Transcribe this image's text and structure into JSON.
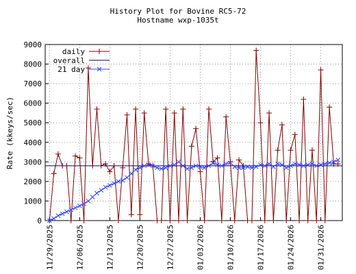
{
  "chart_data": {
    "type": "line",
    "title": "History Plot for Bovine RC5-72",
    "subtitle": "Hostname wxp-1035t",
    "y_label": "Rate (kkeys/sec)",
    "x": [
      "2025-11-29",
      "2025-11-30",
      "2025-12-01",
      "2025-12-02",
      "2025-12-03",
      "2025-12-04",
      "2025-12-05",
      "2025-12-06",
      "2025-12-07",
      "2025-12-08",
      "2025-12-09",
      "2025-12-10",
      "2025-12-11",
      "2025-12-12",
      "2025-12-13",
      "2025-12-14",
      "2025-12-15",
      "2025-12-16",
      "2025-12-17",
      "2025-12-18",
      "2025-12-19",
      "2025-12-20",
      "2025-12-21",
      "2025-12-22",
      "2025-12-23",
      "2025-12-24",
      "2025-12-25",
      "2025-12-26",
      "2025-12-27",
      "2025-12-28",
      "2025-12-29",
      "2025-12-30",
      "2025-12-31",
      "2026-01-01",
      "2026-01-02",
      "2026-01-03",
      "2026-01-04",
      "2026-01-05",
      "2026-01-06",
      "2026-01-07",
      "2026-01-08",
      "2026-01-09",
      "2026-01-10",
      "2026-01-11",
      "2026-01-12",
      "2026-01-13",
      "2026-01-14",
      "2026-01-15",
      "2026-01-16",
      "2026-01-17",
      "2026-01-18",
      "2026-01-19",
      "2026-01-20",
      "2026-01-21",
      "2026-01-22",
      "2026-01-23",
      "2026-01-24",
      "2026-01-25",
      "2026-01-26",
      "2026-01-27",
      "2026-01-28",
      "2026-01-29",
      "2026-01-30",
      "2026-01-31",
      "2026-02-01",
      "2026-02-02",
      "2026-02-03",
      "2026-02-04"
    ],
    "series": [
      {
        "name": "daily",
        "color": "#800000",
        "marker": "plus",
        "values": [
          0,
          2400,
          3400,
          2800,
          2800,
          0,
          3300,
          3200,
          0,
          7800,
          2800,
          5700,
          2800,
          2900,
          2500,
          2800,
          0,
          2700,
          5400,
          300,
          5700,
          300,
          5500,
          2900,
          2800,
          0,
          0,
          5700,
          0,
          5500,
          0,
          5700,
          0,
          3800,
          4700,
          2500,
          0,
          5700,
          3000,
          3200,
          0,
          5300,
          3000,
          0,
          3100,
          2800,
          0,
          0,
          8700,
          5000,
          0,
          5500,
          0,
          3600,
          4900,
          0,
          3600,
          4400,
          0,
          6200,
          0,
          3600,
          0,
          7700,
          0,
          5800,
          2900,
          2900
        ]
      },
      {
        "name": "overall",
        "color": "#000060",
        "marker": "none",
        "x": [
          "2025-11-28",
          "2026-02-05"
        ],
        "values": [
          2800,
          2800
        ]
      },
      {
        "name": "21 day",
        "color": "#3344ff",
        "marker": "cross",
        "values": [
          0,
          100,
          250,
          350,
          450,
          550,
          650,
          750,
          850,
          1000,
          1200,
          1400,
          1550,
          1700,
          1800,
          1900,
          2000,
          2050,
          2200,
          2400,
          2600,
          2700,
          2800,
          2850,
          2800,
          2700,
          2650,
          2700,
          2800,
          2850,
          3000,
          2800,
          2650,
          2700,
          2800,
          2750,
          2700,
          2800,
          2950,
          2850,
          2800,
          2900,
          2950,
          2750,
          2700,
          2700,
          2750,
          2700,
          2750,
          2850,
          2800,
          2900,
          2750,
          2900,
          2850,
          2700,
          2800,
          2900,
          2850,
          2800,
          2850,
          2900,
          2800,
          2850,
          2900,
          2950,
          3000,
          3100
        ]
      }
    ],
    "xlim": [
      "2025-11-28",
      "2026-02-05"
    ],
    "xticks": [
      {
        "value": "2025-11-29",
        "label": "11/29/2025"
      },
      {
        "value": "2025-12-06",
        "label": "12/06/2025"
      },
      {
        "value": "2025-12-13",
        "label": "12/13/2025"
      },
      {
        "value": "2025-12-20",
        "label": "12/20/2025"
      },
      {
        "value": "2025-12-27",
        "label": "12/27/2025"
      },
      {
        "value": "2026-01-03",
        "label": "01/03/2026"
      },
      {
        "value": "2026-01-10",
        "label": "01/10/2026"
      },
      {
        "value": "2026-01-17",
        "label": "01/17/2026"
      },
      {
        "value": "2026-01-24",
        "label": "01/24/2026"
      },
      {
        "value": "2026-01-31",
        "label": "01/31/2026"
      }
    ],
    "ylim": [
      0,
      9000
    ],
    "yticks": [
      0,
      1000,
      2000,
      3000,
      4000,
      5000,
      6000,
      7000,
      8000,
      9000
    ],
    "grid": true,
    "legend": "top-left"
  }
}
